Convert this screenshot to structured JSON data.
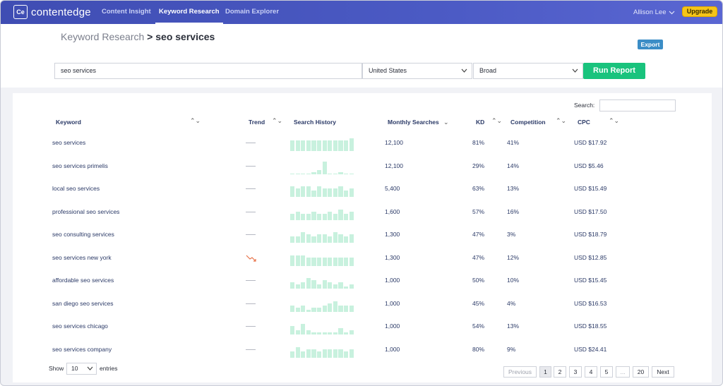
{
  "nav": {
    "logo_text": "contentedge",
    "logo_mark": "Ce",
    "tabs": [
      "Content Insight",
      "Keyword Research",
      "Domain Explorer"
    ],
    "active_tab": "Keyword Research",
    "user_name": "Allison Lee",
    "upgrade_label": "Upgrade"
  },
  "header": {
    "breadcrumb_parent": "Keyword Research",
    "breadcrumb_sep": ">",
    "breadcrumb_current": "seo services",
    "export_label": "Export",
    "search_value": "seo services",
    "country": "United States",
    "match_type": "Broad",
    "run_label": "Run Report"
  },
  "table": {
    "search_label": "Search:",
    "columns": [
      "Keyword",
      "Trend",
      "Search History",
      "Monthly Searches",
      "KD",
      "Competition",
      "CPC"
    ],
    "rows": [
      {
        "keyword": "seo services",
        "trend": "flat",
        "history": [
          5,
          5,
          5,
          5,
          5,
          5,
          5,
          5,
          5,
          5,
          5,
          6
        ],
        "monthly": "12,100",
        "kd": "81%",
        "competition": "41%",
        "cpc": "USD $17.92"
      },
      {
        "keyword": "seo services primelis",
        "trend": "flat",
        "history": [
          0,
          0,
          0,
          0,
          1,
          2,
          6,
          0,
          0,
          1,
          0,
          0
        ],
        "monthly": "12,100",
        "kd": "29%",
        "competition": "14%",
        "cpc": "USD $5.46"
      },
      {
        "keyword": "local seo services",
        "trend": "flat",
        "history": [
          5,
          4,
          5,
          5,
          3,
          5,
          4,
          4,
          4,
          5,
          3,
          4
        ],
        "monthly": "5,400",
        "kd": "63%",
        "competition": "13%",
        "cpc": "USD $15.49"
      },
      {
        "keyword": "professional seo services",
        "trend": "flat",
        "history": [
          3,
          4,
          3,
          3,
          4,
          3,
          3,
          4,
          3,
          5,
          3,
          4
        ],
        "monthly": "1,600",
        "kd": "57%",
        "competition": "16%",
        "cpc": "USD $17.50"
      },
      {
        "keyword": "seo consulting services",
        "trend": "flat",
        "history": [
          3,
          3,
          5,
          4,
          3,
          4,
          4,
          3,
          5,
          4,
          3,
          4
        ],
        "monthly": "1,300",
        "kd": "47%",
        "competition": "3%",
        "cpc": "USD $18.79"
      },
      {
        "keyword": "seo services new york",
        "trend": "down",
        "history": [
          5,
          5,
          5,
          4,
          4,
          4,
          4,
          4,
          4,
          4,
          4,
          4
        ],
        "monthly": "1,300",
        "kd": "47%",
        "competition": "12%",
        "cpc": "USD $12.85"
      },
      {
        "keyword": "affordable seo services",
        "trend": "flat",
        "history": [
          3,
          2,
          3,
          5,
          4,
          2,
          4,
          3,
          2,
          3,
          1,
          2
        ],
        "monthly": "1,000",
        "kd": "50%",
        "competition": "10%",
        "cpc": "USD $15.45"
      },
      {
        "keyword": "san diego seo services",
        "trend": "flat",
        "history": [
          3,
          2,
          3,
          1,
          2,
          2,
          3,
          4,
          5,
          3,
          3,
          3
        ],
        "monthly": "1,000",
        "kd": "45%",
        "competition": "4%",
        "cpc": "USD $16.53"
      },
      {
        "keyword": "seo services chicago",
        "trend": "flat",
        "history": [
          4,
          2,
          5,
          2,
          1,
          1,
          1,
          1,
          1,
          3,
          1,
          2
        ],
        "monthly": "1,000",
        "kd": "54%",
        "competition": "13%",
        "cpc": "USD $18.55"
      },
      {
        "keyword": "seo services company",
        "trend": "flat",
        "history": [
          3,
          5,
          3,
          4,
          4,
          3,
          4,
          4,
          4,
          4,
          3,
          4
        ],
        "monthly": "1,000",
        "kd": "80%",
        "competition": "9%",
        "cpc": "USD $24.41"
      }
    ]
  },
  "footer": {
    "show_label": "Show",
    "show_value": "10",
    "entries_label": "entries",
    "pagination": [
      "Previous",
      "1",
      "2",
      "3",
      "4",
      "5",
      "...",
      "20",
      "Next"
    ],
    "active_page": "1"
  },
  "colors": {
    "nav_bg": "#4b5ac4",
    "run_button": "#19c37d",
    "export_button": "#3b8dc6",
    "upgrade_button": "#f5c518",
    "history_bar": "#c8f1de",
    "trend_down": "#e8734a"
  },
  "icons": {
    "logo": "logo-icon",
    "user_menu": "chevron-down-icon",
    "select_arrow": "chevron-down-icon",
    "sort": "sort-icon",
    "trend_down": "trend-down-icon"
  }
}
